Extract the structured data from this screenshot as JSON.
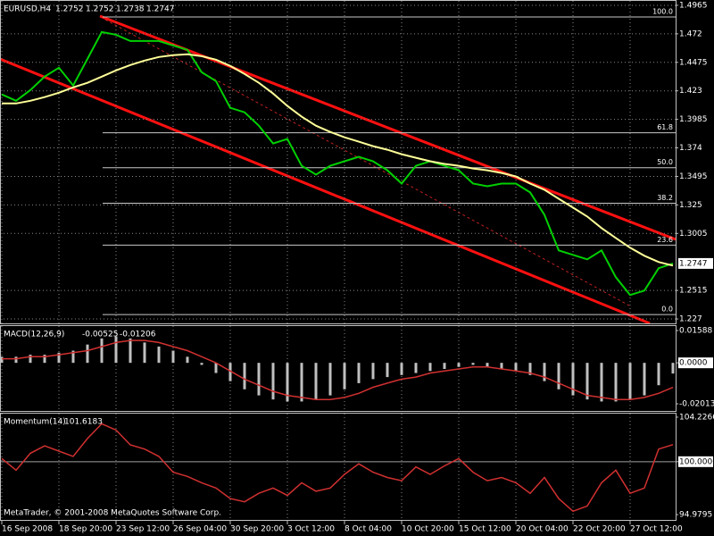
{
  "header": {
    "symbol": "EURUSD,H4",
    "ohlc": [
      1.2752,
      1.2752,
      1.2738,
      1.2747
    ]
  },
  "chart_data": [
    {
      "type": "price",
      "categories": [
        "16 Sep 2008",
        null,
        null,
        null,
        "18 Sep 20:00",
        null,
        null,
        null,
        "23 Sep 12:00",
        null,
        null,
        null,
        "26 Sep 04:00",
        null,
        null,
        null,
        "30 Sep 20:00",
        null,
        null,
        null,
        "3 Oct 12:00",
        null,
        null,
        null,
        "8 Oct 04:00",
        null,
        null,
        null,
        "10 Oct 20:00",
        null,
        null,
        null,
        "15 Oct 12:00",
        null,
        null,
        null,
        "20 Oct 04:00",
        null,
        null,
        null,
        "22 Oct 20:00",
        null,
        null,
        null,
        "27 Oct 12:00",
        null,
        null,
        null
      ],
      "series": [
        {
          "color": "#00d000",
          "values": [
            1.4199,
            1.4145,
            1.4237,
            1.4352,
            1.4429,
            1.4276,
            1.4505,
            1.4735,
            1.4712,
            1.4658,
            1.4658,
            1.4658,
            1.462,
            1.4582,
            1.439,
            1.4314,
            1.4084,
            1.4046,
            1.3931,
            1.3778,
            1.3816,
            1.3586,
            1.351,
            1.3586,
            1.3625,
            1.3663,
            1.3625,
            1.3548,
            1.3433,
            1.3586,
            1.3625,
            1.3586,
            1.3548,
            1.3433,
            1.341,
            1.3433,
            1.3433,
            1.3357,
            1.3165,
            1.2859,
            1.2821,
            1.2782,
            1.2859,
            1.2629,
            1.2476,
            1.2514,
            1.2706,
            1.2747
          ]
        },
        {
          "color": "#ffff99",
          "values": [
            1.4122,
            1.4122,
            1.4145,
            1.4176,
            1.4214,
            1.426,
            1.4299,
            1.4352,
            1.4406,
            1.4452,
            1.449,
            1.4521,
            1.4536,
            1.4544,
            1.4528,
            1.4498,
            1.4444,
            1.4375,
            1.4299,
            1.4207,
            1.41,
            1.4008,
            1.3931,
            1.3877,
            1.3831,
            1.3793,
            1.3755,
            1.3724,
            1.3686,
            1.3655,
            1.3625,
            1.3602,
            1.3586,
            1.3563,
            1.3548,
            1.3525,
            1.3495,
            1.3433,
            1.338,
            1.3303,
            1.3227,
            1.315,
            1.3051,
            1.2966,
            1.2882,
            1.2813,
            1.2759,
            1.2729
          ]
        }
      ],
      "ylim": [
        1.2232,
        1.5003
      ],
      "yticks": [
        1.4965,
        1.472,
        1.4475,
        1.423,
        1.3985,
        1.374,
        1.3495,
        1.325,
        1.3005,
        1.2515,
        1.227
      ],
      "last_price": 1.2747,
      "fib_levels": [
        {
          "value": 1.4865,
          "label": "100.0"
        },
        {
          "value": 1.387,
          "label": "61.8"
        },
        {
          "value": 1.357,
          "label": "50.0"
        },
        {
          "value": 1.3264,
          "label": "38.2"
        },
        {
          "value": 1.2905,
          "label": "23.6"
        },
        {
          "value": 1.2308,
          "label": "0.0"
        }
      ]
    },
    {
      "type": "macd",
      "title": "MACD(12,26,9)",
      "readings": [
        -0.00525,
        -0.01206
      ],
      "histogram": {
        "color": "#c0c0c0",
        "values": [
          0.003,
          0.003,
          0.004,
          0.004,
          0.005,
          0.006,
          0.009,
          0.012,
          0.013,
          0.012,
          0.01,
          0.008,
          0.006,
          0.003,
          -0.001,
          -0.005,
          -0.009,
          -0.013,
          -0.016,
          -0.018,
          -0.019,
          -0.019,
          -0.018,
          -0.016,
          -0.013,
          -0.01,
          -0.008,
          -0.007,
          -0.006,
          -0.005,
          -0.004,
          -0.003,
          -0.002,
          -0.001,
          -0.002,
          -0.003,
          -0.004,
          -0.006,
          -0.009,
          -0.013,
          -0.016,
          -0.018,
          -0.019,
          -0.019,
          -0.018,
          -0.016,
          -0.011,
          -0.00525
        ]
      },
      "signal": {
        "color": "#d03030",
        "values": [
          0.002,
          0.002,
          0.003,
          0.003,
          0.004,
          0.005,
          0.006,
          0.008,
          0.01,
          0.011,
          0.011,
          0.01,
          0.008,
          0.006,
          0.003,
          0.0,
          -0.004,
          -0.008,
          -0.011,
          -0.014,
          -0.016,
          -0.017,
          -0.018,
          -0.018,
          -0.017,
          -0.015,
          -0.012,
          -0.01,
          -0.008,
          -0.007,
          -0.005,
          -0.004,
          -0.003,
          -0.002,
          -0.002,
          -0.003,
          -0.004,
          -0.005,
          -0.007,
          -0.01,
          -0.013,
          -0.016,
          -0.017,
          -0.018,
          -0.018,
          -0.017,
          -0.015,
          -0.01206
        ]
      },
      "ylim": [
        -0.02364,
        0.01808
      ],
      "yticks": [
        0.01588,
        {
          "value": 0,
          "label": "0.0000"
        },
        -0.02013
      ]
    },
    {
      "type": "momentum",
      "title": "Momentum(14)",
      "reading": 101.6183,
      "series": [
        {
          "color": "#d03030",
          "values": [
            100.3,
            99.2,
            100.8,
            101.5,
            101.0,
            100.5,
            102.2,
            103.6,
            103.0,
            101.6,
            101.2,
            100.5,
            99.0,
            98.6,
            98.0,
            97.5,
            96.5,
            96.2,
            97.0,
            97.5,
            96.8,
            98.0,
            97.2,
            97.5,
            98.8,
            99.8,
            99.0,
            98.5,
            98.2,
            99.5,
            98.8,
            99.6,
            100.3,
            99.0,
            98.2,
            98.5,
            98.0,
            97.0,
            98.5,
            96.5,
            95.3,
            95.8,
            98.0,
            99.2,
            97.0,
            97.5,
            101.2,
            101.6183
          ]
        }
      ],
      "level": 100,
      "ylim": [
        94.475,
        104.563
      ],
      "yticks": [
        104.2266,
        {
          "value": 100,
          "label": "100.0000"
        },
        94.9795
      ]
    }
  ],
  "footer": "MetaTrader, © 2001-2008 MetaQuotes Software Corp."
}
